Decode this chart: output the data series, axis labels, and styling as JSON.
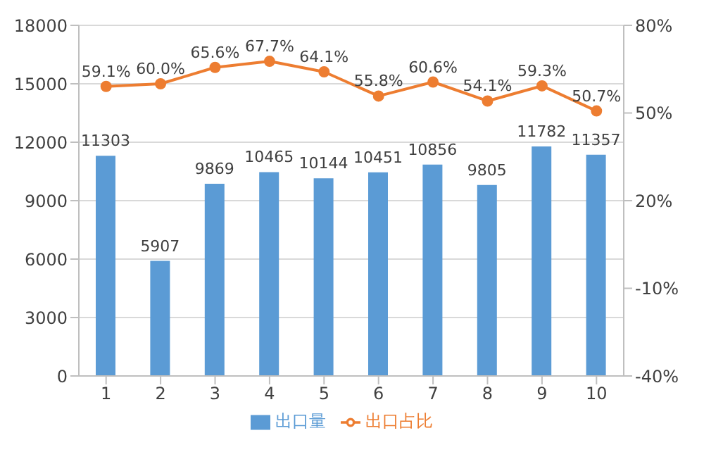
{
  "chart_data": {
    "type": "bar",
    "categories": [
      "1",
      "2",
      "3",
      "4",
      "5",
      "6",
      "7",
      "8",
      "9",
      "10"
    ],
    "series": [
      {
        "name": "出口量",
        "color": "#5b9bd5",
        "values": [
          11303,
          5907,
          9869,
          10465,
          10144,
          10451,
          10856,
          9805,
          11782,
          11357
        ],
        "value_labels": [
          "11303",
          "5907",
          "9869",
          "10465",
          "10144",
          "10451",
          "10856",
          "9805",
          "11782",
          "11357"
        ]
      },
      {
        "name": "出口占比",
        "type": "line",
        "axis": "y2",
        "color": "#ed7d31",
        "values": [
          59.1,
          60.0,
          65.6,
          67.7,
          64.1,
          55.8,
          60.6,
          54.1,
          59.3,
          50.7
        ],
        "value_labels": [
          "59.1%",
          "60.0%",
          "65.6%",
          "67.7%",
          "64.1%",
          "55.8%",
          "60.6%",
          "54.1%",
          "59.3%",
          "50.7%"
        ]
      }
    ],
    "ylim": [
      0,
      18000
    ],
    "yticks": [
      0,
      3000,
      6000,
      9000,
      12000,
      15000,
      18000
    ],
    "y2lim": [
      -40,
      80
    ],
    "y2ticks": [
      {
        "value": -40,
        "label": "-40%"
      },
      {
        "value": -10,
        "label": "-10%"
      },
      {
        "value": 20,
        "label": "20%"
      },
      {
        "value": 50,
        "label": "50%"
      },
      {
        "value": 80,
        "label": "80%"
      }
    ],
    "grid": "y",
    "legend": "bottom",
    "marker": "circle",
    "line_style": "solid"
  }
}
